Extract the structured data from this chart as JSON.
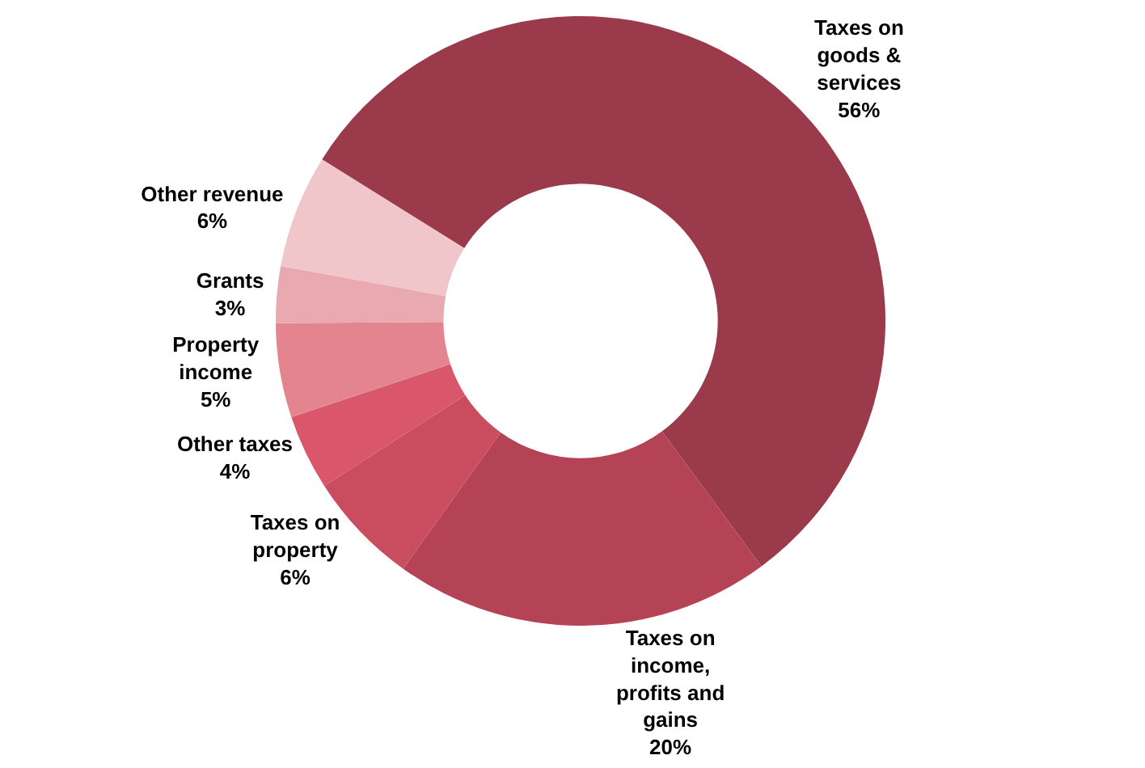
{
  "chart_data": {
    "type": "donut",
    "categories": [
      "Taxes on goods & services",
      "Taxes on income, profits and gains",
      "Taxes on property",
      "Other taxes",
      "Property income",
      "Grants",
      "Other revenue"
    ],
    "values": [
      56,
      20,
      6,
      4,
      5,
      3,
      6
    ],
    "colors": [
      "#9b3a4b",
      "#b44455",
      "#c94d5e",
      "#d9566b",
      "#e3848f",
      "#e8a9b0",
      "#f0c6ca"
    ],
    "value_labels": [
      "56%",
      "20%",
      "6%",
      "4%",
      "5%",
      "3%",
      "6%"
    ],
    "legend": false
  }
}
